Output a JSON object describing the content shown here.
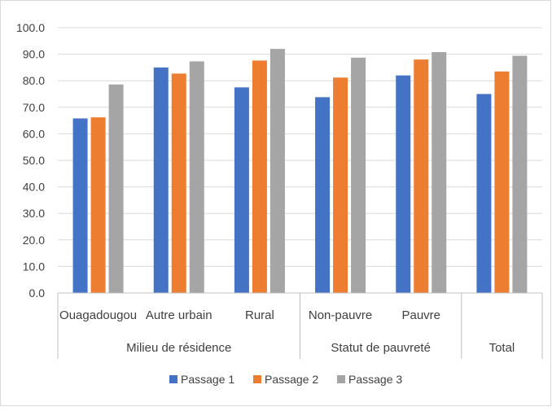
{
  "chart_data": {
    "type": "bar",
    "title": "",
    "xlabel": "",
    "ylabel": "",
    "ylim": [
      0,
      100
    ],
    "y_ticks": [
      "0.0",
      "10.0",
      "20.0",
      "30.0",
      "40.0",
      "50.0",
      "60.0",
      "70.0",
      "80.0",
      "90.0",
      "100.0"
    ],
    "grid": true,
    "legend_position": "bottom",
    "categories": [
      "Ouagadougou",
      "Autre urbain",
      "Rural",
      "Non-pauvre",
      "Pauvre",
      ""
    ],
    "groups": [
      {
        "label": "Milieu de résidence",
        "categories": [
          "Ouagadougou",
          "Autre urbain",
          "Rural"
        ]
      },
      {
        "label": "Statut de pauvreté",
        "categories": [
          "Non-pauvre",
          "Pauvre"
        ]
      },
      {
        "label": "Total",
        "categories": [
          ""
        ]
      }
    ],
    "series": [
      {
        "name": "Passage 1",
        "color": "#4472c4",
        "values": [
          65.8,
          85.0,
          77.5,
          73.8,
          82.0,
          75.0
        ]
      },
      {
        "name": "Passage 2",
        "color": "#ed7d31",
        "values": [
          66.2,
          82.7,
          87.6,
          81.2,
          88.0,
          83.5
        ]
      },
      {
        "name": "Passage 3",
        "color": "#a5a5a5",
        "values": [
          78.6,
          87.3,
          92.0,
          88.7,
          90.8,
          89.4
        ]
      }
    ]
  }
}
